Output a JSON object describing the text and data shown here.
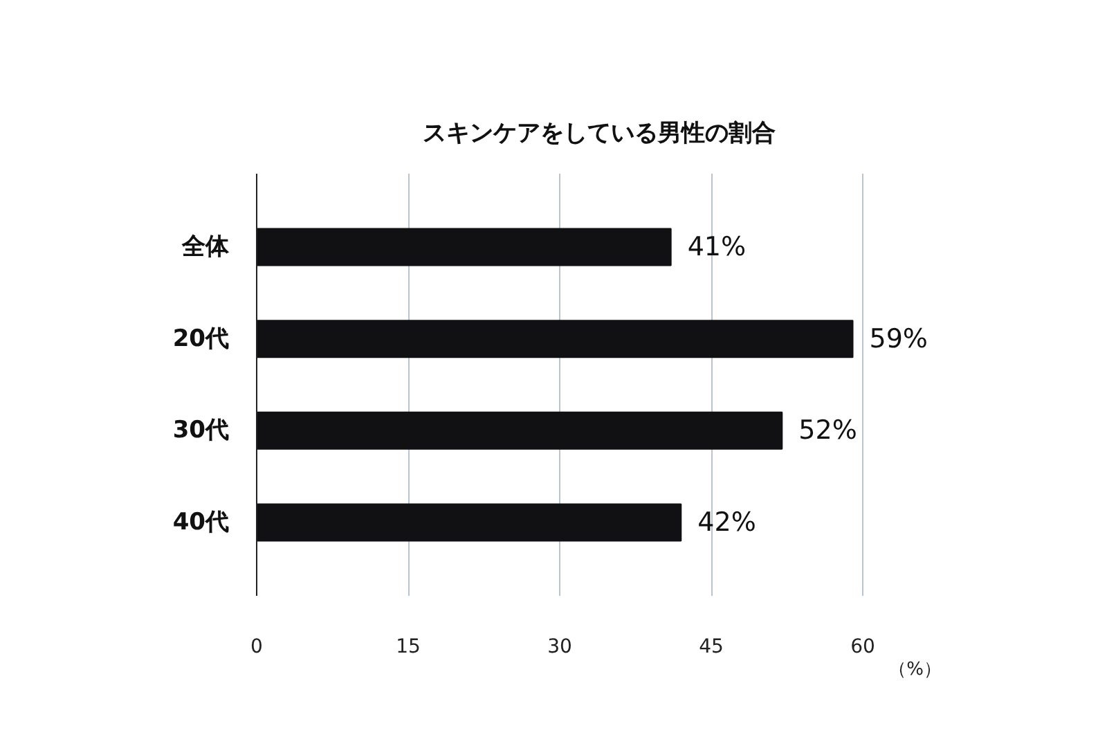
{
  "chart_data": {
    "type": "bar",
    "orientation": "horizontal",
    "title": "スキンケアをしている男性の割合",
    "categories": [
      "全体",
      "20代",
      "30代",
      "40代"
    ],
    "values": [
      41,
      59,
      52,
      42
    ],
    "value_labels": [
      "41%",
      "59%",
      "52%",
      "42%"
    ],
    "color": "#111114",
    "xlabel": "（%）",
    "xlim": [
      0,
      60
    ],
    "xticks": [
      0,
      15,
      30,
      45,
      60
    ],
    "grid": "x"
  }
}
